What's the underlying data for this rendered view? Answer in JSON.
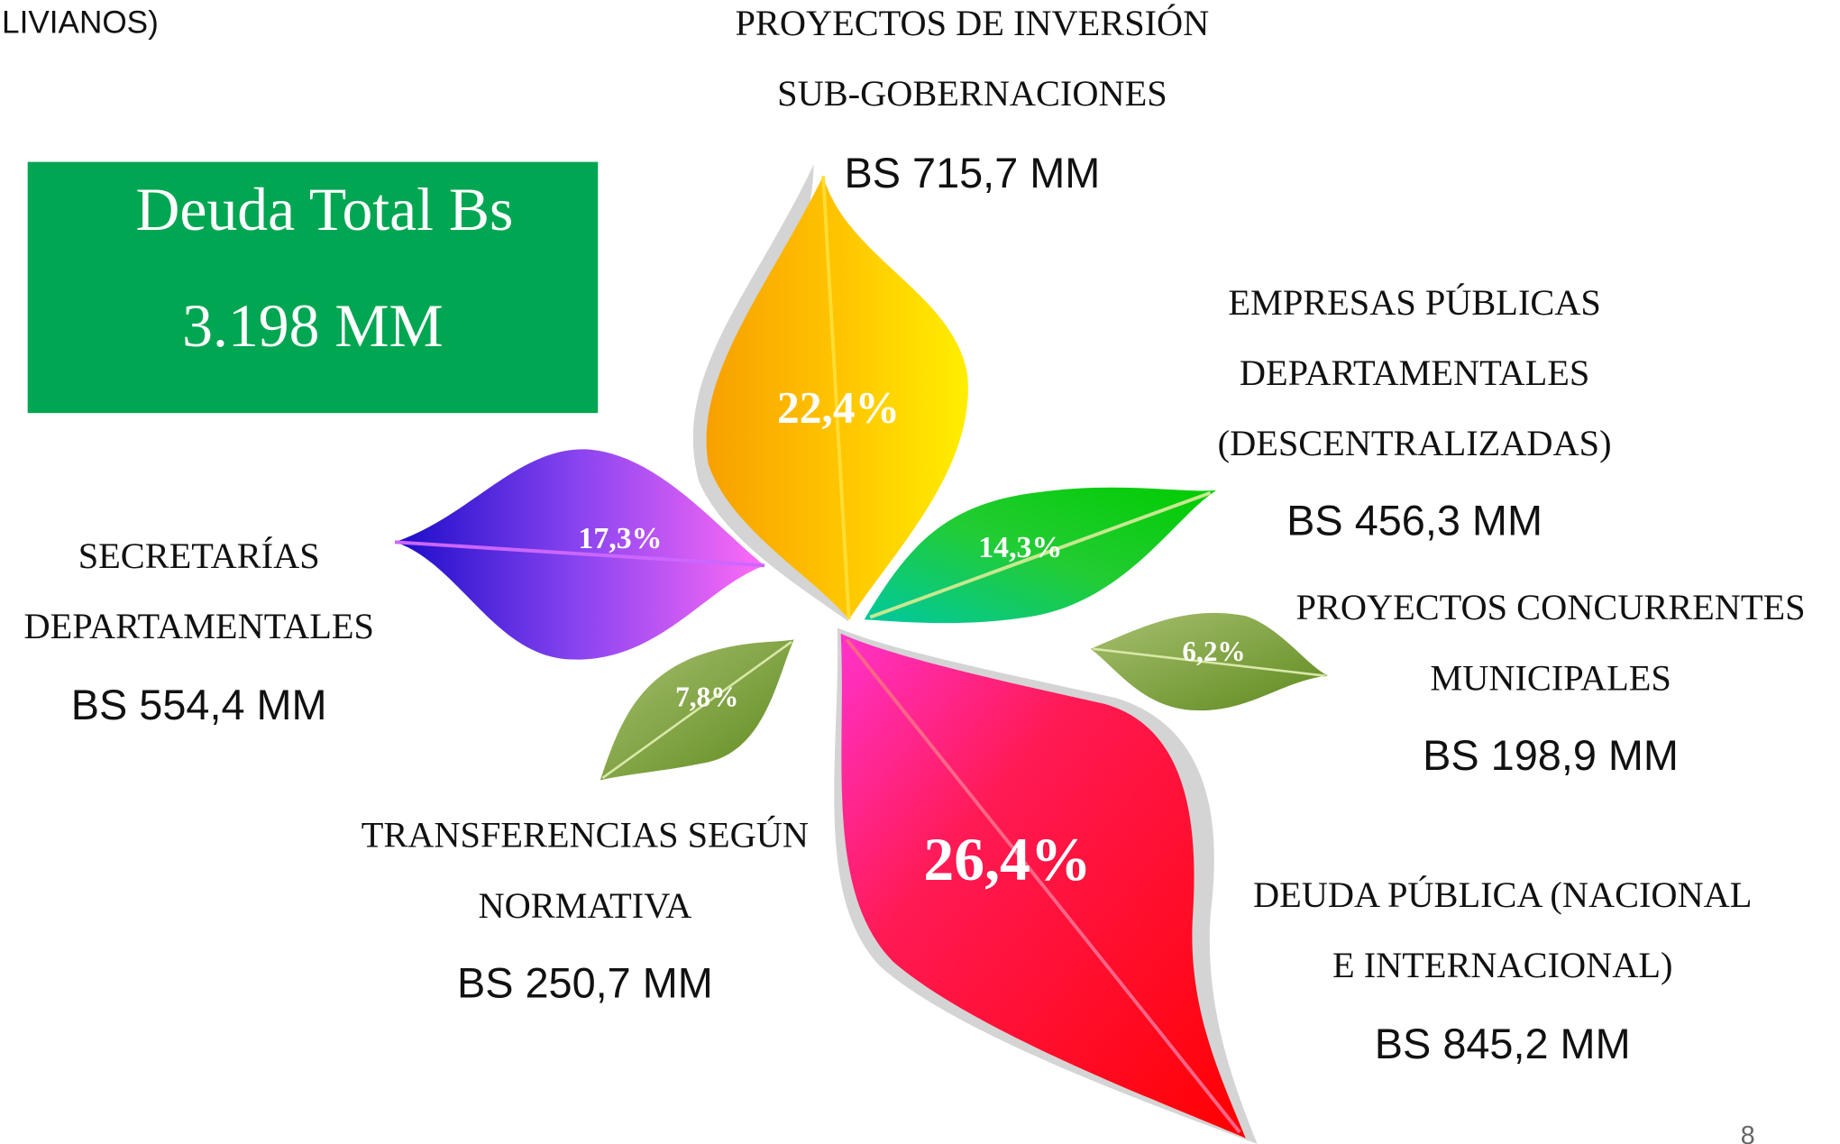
{
  "header": {
    "fragment": "LIVIANOS)"
  },
  "total": {
    "title": "Deuda Total Bs",
    "amount": "3.198 MM"
  },
  "items": [
    {
      "label": [
        "PROYECTOS DE INVERSIÓN",
        "SUB-GOBERNACIONES"
      ],
      "amount": "BS 715,7 MM",
      "percent": "22,4%"
    },
    {
      "label": [
        "EMPRESAS PÚBLICAS",
        "DEPARTAMENTALES",
        "(DESCENTRALIZADAS)"
      ],
      "amount": "BS 456,3 MM",
      "percent": "14,3%"
    },
    {
      "label": [
        "PROYECTOS CONCURRENTES",
        "MUNICIPALES"
      ],
      "amount": "BS 198,9 MM",
      "percent": "6,2%"
    },
    {
      "label": [
        "DEUDA PÚBLICA (NACIONAL",
        "E INTERNACIONAL)"
      ],
      "amount": "BS 845,2 MM",
      "percent": "26,4%"
    },
    {
      "label": [
        "TRANSFERENCIAS SEGÚN",
        "NORMATIVA"
      ],
      "amount": "BS 250,7 MM",
      "percent": "7,8%"
    },
    {
      "label": [
        "SECRETARÍAS",
        "DEPARTAMENTALES"
      ],
      "amount": "BS 554,4 MM",
      "percent": "17,3%"
    }
  ],
  "footer": {
    "page_number": "8"
  }
}
